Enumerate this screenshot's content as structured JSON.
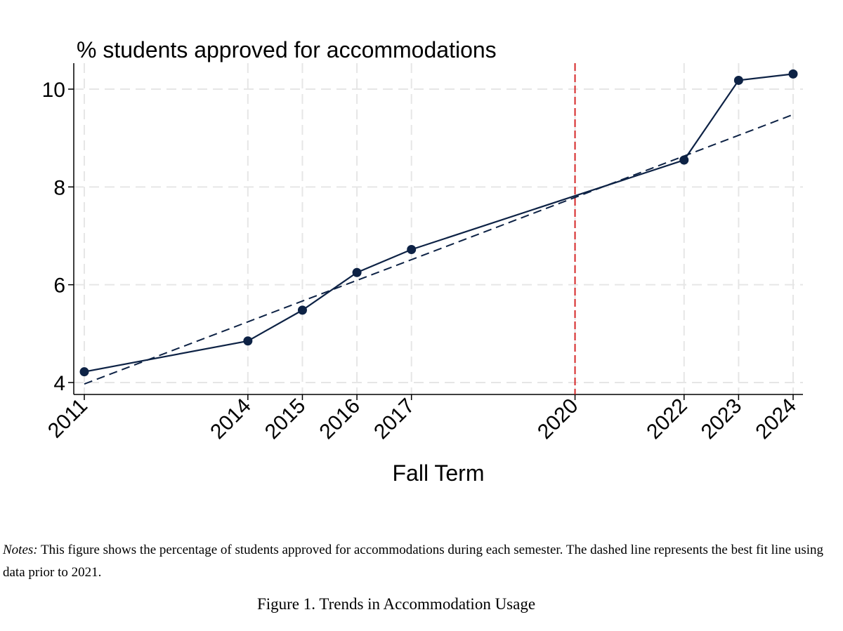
{
  "chart_data": {
    "type": "line",
    "title": "% students approved for accommodations",
    "xlabel": "Fall Term",
    "ylabel": "",
    "x": [
      2011,
      2014,
      2015,
      2016,
      2017,
      2020,
      2022,
      2023,
      2024
    ],
    "x_tick_labels": [
      "2011",
      "2014",
      "2015",
      "2016",
      "2017",
      "2020",
      "2022",
      "2023",
      "2024"
    ],
    "xlim": [
      2011,
      2024
    ],
    "ylim": [
      3.8,
      10.6
    ],
    "y_ticks": [
      4,
      6,
      8,
      10
    ],
    "y_tick_labels": [
      "4",
      "6",
      "8",
      "10"
    ],
    "grid": true,
    "series": [
      {
        "style": "solid-with-markers",
        "x": [
          2011,
          2014,
          2015,
          2016,
          2017,
          2022,
          2023,
          2024
        ],
        "values": [
          4.22,
          4.85,
          5.48,
          6.25,
          6.72,
          8.55,
          10.18,
          10.31
        ],
        "color": "#0d2245"
      },
      {
        "style": "dashed",
        "x": [
          2011,
          2024
        ],
        "values": [
          3.97,
          9.48
        ],
        "color": "#0d2245"
      }
    ],
    "reference_line": {
      "x": 2020,
      "color": "#d62728",
      "style": "dashed"
    }
  },
  "notes": {
    "label": "Notes:",
    "text": " This figure shows the percentage of students approved for accommodations during each semester. The dashed line represents the best fit line using data prior to 2021."
  },
  "caption": "Figure 1. Trends in Accommodation Usage"
}
